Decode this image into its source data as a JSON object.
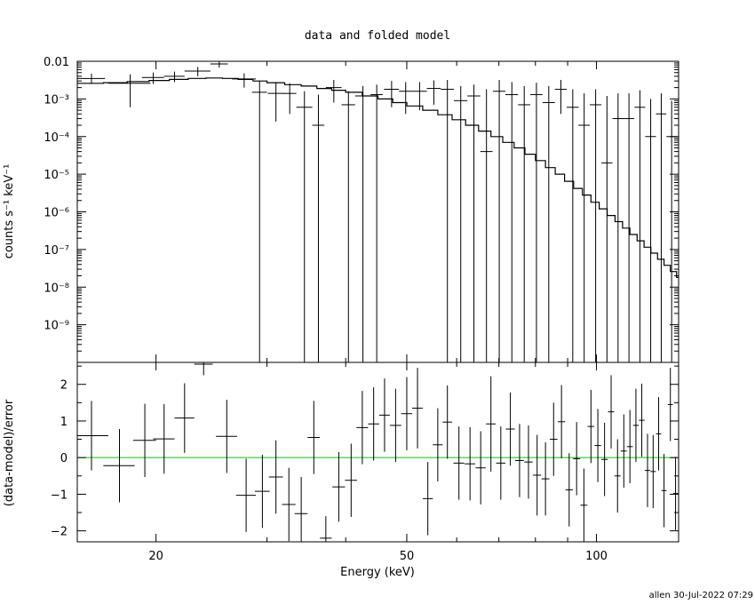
{
  "title": "data and folded model",
  "xlabel": "Energy (keV)",
  "footer": "allen 30-Jul-2022 07:29",
  "colors": {
    "axes": "#000000",
    "zero_line": "#00cc00",
    "background": "#ffffff"
  },
  "chart_data": [
    {
      "type": "line",
      "panel": "spectrum",
      "title": "data and folded model",
      "ylabel": "counts s⁻¹ keV⁻¹",
      "xscale": "log",
      "yscale": "log",
      "xlim": [
        15,
        135
      ],
      "ylim": [
        1e-10,
        0.01
      ],
      "x_ticks": [
        20,
        50,
        100
      ],
      "y_ticks": [
        0.01,
        0.001,
        0.0001,
        1e-05,
        1e-06,
        1e-07,
        1e-08,
        1e-09
      ],
      "y_tick_labels": [
        "0.01",
        "10⁻³",
        "10⁻⁴",
        "10⁻⁵",
        "10⁻⁶",
        "10⁻⁷",
        "10⁻⁸",
        "10⁻⁹"
      ],
      "data": {
        "name": "data",
        "x": [
          15.8,
          18.2,
          19.8,
          21.4,
          23.3,
          25.2,
          27.6,
          29.2,
          31.0,
          32.6,
          34.4,
          36.2,
          38.3,
          40.4,
          42.6,
          44.8,
          47.3,
          49.8,
          52.4,
          55.2,
          58.0,
          60.9,
          63.9,
          66.9,
          70.1,
          73.4,
          76.8,
          80.3,
          84.0,
          87.8,
          91.7,
          95.6,
          99.7,
          103.9,
          108.2,
          112.6,
          117.2,
          121.9,
          126.7,
          131.6
        ],
        "y": [
          0.0035,
          0.0026,
          0.0037,
          0.004,
          0.0055,
          0.0085,
          0.0034,
          0.0015,
          0.0014,
          0.0014,
          0.0006,
          0.0002,
          0.002,
          0.0007,
          0.0012,
          0.0013,
          0.0018,
          0.0016,
          0.0016,
          0.0019,
          0.0018,
          0.0009,
          0.0012,
          4e-05,
          0.0016,
          0.0013,
          0.0007,
          0.0013,
          0.0008,
          0.0018,
          0.0006,
          0.0002,
          0.0007,
          2e-05,
          0.0003,
          0.0003,
          0.0006,
          0.0001,
          0.0004,
          0.0001
        ],
        "x_err": [
          0.8,
          1.4,
          0.8,
          0.8,
          1.1,
          0.8,
          1.2,
          0.8,
          0.9,
          0.8,
          1.0,
          0.8,
          1.1,
          1.0,
          1.2,
          1.0,
          1.3,
          1.2,
          1.4,
          1.4,
          1.4,
          1.5,
          1.5,
          1.5,
          1.6,
          1.7,
          1.7,
          1.8,
          1.9,
          1.9,
          2.0,
          2.0,
          2.1,
          2.1,
          2.2,
          2.2,
          2.3,
          2.4,
          2.4,
          2.5
        ],
        "y_lo": [
          0.0025,
          0.0006,
          0.0025,
          0.0028,
          0.004,
          0.0068,
          0.002,
          1e-10,
          0.00025,
          0.0004,
          1e-10,
          1e-10,
          0.0008,
          1e-10,
          1e-10,
          1e-10,
          0.0006,
          0.0004,
          0.0005,
          0.0007,
          1e-10,
          1e-10,
          1e-10,
          1e-10,
          1e-10,
          1e-10,
          1e-10,
          1e-10,
          1e-10,
          0.0004,
          1e-10,
          1e-10,
          1e-10,
          1e-10,
          1e-10,
          1e-10,
          1e-10,
          1e-10,
          1e-10,
          1e-10
        ],
        "y_hi": [
          0.0047,
          0.0045,
          0.005,
          0.0053,
          0.0071,
          0.0102,
          0.0048,
          0.003,
          0.0028,
          0.0026,
          0.0016,
          0.0013,
          0.0032,
          0.0016,
          0.0022,
          0.0024,
          0.003,
          0.0028,
          0.0028,
          0.0031,
          0.0032,
          0.0022,
          0.0024,
          0.0018,
          0.0032,
          0.0028,
          0.0022,
          0.0027,
          0.0022,
          0.0032,
          0.0018,
          0.0014,
          0.0018,
          0.0012,
          0.0014,
          0.0014,
          0.0017,
          0.001,
          0.0014,
          0.0009
        ]
      },
      "model": {
        "name": "folded model",
        "x": [
          15.0,
          16.5,
          18.0,
          19.5,
          21.0,
          22.5,
          24.0,
          25.5,
          27.0,
          28.5,
          30.0,
          32.0,
          34.0,
          36.0,
          38.0,
          40.0,
          42.5,
          45.0,
          47.5,
          50.0,
          53.0,
          56.0,
          59.0,
          62.0,
          65.0,
          68.0,
          71.0,
          74.0,
          77.0,
          80.0,
          83.0,
          86.0,
          89.0,
          92.0,
          95.0,
          98.0,
          101.0,
          104.0,
          107.0,
          110.0,
          113.0,
          116.0,
          119.0,
          122.0,
          125.0,
          128.0,
          131.0,
          134.0
        ],
        "y": [
          0.0026,
          0.0027,
          0.0029,
          0.0031,
          0.0033,
          0.0035,
          0.0036,
          0.0035,
          0.0033,
          0.003,
          0.0027,
          0.0024,
          0.0022,
          0.0019,
          0.0017,
          0.0015,
          0.0012,
          0.001,
          0.0008,
          0.00065,
          0.0005,
          0.00038,
          0.00028,
          0.0002,
          0.00014,
          0.0001,
          7e-05,
          5e-05,
          3.4e-05,
          2.3e-05,
          1.5e-05,
          1e-05,
          6.5e-06,
          4.2e-06,
          2.8e-06,
          1.8e-06,
          1.2e-06,
          8e-07,
          5.5e-07,
          3.7e-07,
          2.5e-07,
          1.7e-07,
          1.15e-07,
          8e-08,
          5.5e-08,
          3.8e-08,
          2.6e-08,
          1.8e-08
        ]
      }
    },
    {
      "type": "scatter",
      "panel": "residuals",
      "ylabel": "(data-model)/error",
      "xscale": "log",
      "yscale": "linear",
      "xlim": [
        15,
        135
      ],
      "ylim": [
        -2.3,
        2.6
      ],
      "x_ticks": [
        20,
        50,
        100
      ],
      "x_tick_labels": [
        "20",
        "50",
        "100"
      ],
      "y_ticks": [
        2,
        1,
        0,
        -1,
        -2
      ],
      "y_tick_labels": [
        "2",
        "1",
        "0",
        "−1",
        "−2"
      ],
      "zero_line": 0,
      "residuals": {
        "x": [
          15.8,
          17.5,
          19.2,
          20.6,
          22.2,
          23.8,
          25.9,
          27.8,
          29.5,
          31.0,
          32.5,
          34.0,
          35.6,
          37.2,
          39.0,
          40.8,
          42.5,
          44.3,
          46.1,
          48.0,
          50.0,
          52.0,
          54.0,
          56.0,
          58.0,
          60.5,
          63.0,
          65.5,
          68.0,
          70.5,
          73.0,
          75.5,
          78.0,
          80.5,
          83.0,
          85.5,
          88.0,
          90.5,
          93.0,
          95.5,
          98.0,
          100.5,
          103.0,
          105.5,
          108.0,
          110.5,
          113.0,
          115.5,
          118.0,
          120.5,
          123.0,
          125.5,
          128.0,
          131.0,
          133.5
        ],
        "y": [
          0.6,
          -0.22,
          0.47,
          0.51,
          1.08,
          2.55,
          0.58,
          -1.03,
          -0.92,
          -0.53,
          -1.28,
          -1.53,
          0.55,
          -2.2,
          -0.8,
          -0.62,
          0.82,
          0.92,
          1.16,
          0.88,
          1.2,
          1.35,
          -1.12,
          0.35,
          0.97,
          -0.15,
          -0.17,
          -0.28,
          0.92,
          -0.15,
          0.78,
          -0.08,
          -0.12,
          -0.48,
          -0.58,
          0.5,
          0.98,
          -0.88,
          -0.03,
          -1.3,
          0.85,
          0.33,
          -0.05,
          1.25,
          -0.5,
          0.18,
          0.3,
          0.88,
          1.02,
          -0.35,
          -0.38,
          0.65,
          -0.9,
          1.45,
          -0.98
        ],
        "x_err": [
          1.0,
          1.0,
          0.8,
          0.8,
          0.8,
          0.8,
          1.0,
          1.0,
          0.8,
          0.8,
          0.8,
          0.8,
          0.8,
          0.8,
          0.9,
          0.9,
          0.9,
          0.9,
          0.9,
          1.0,
          1.0,
          1.0,
          1.0,
          1.0,
          1.0,
          1.2,
          1.2,
          1.2,
          1.2,
          1.2,
          1.2,
          1.2,
          1.2,
          1.2,
          1.2,
          1.2,
          1.2,
          1.2,
          1.2,
          1.2,
          1.2,
          1.2,
          1.2,
          1.2,
          1.2,
          1.2,
          1.2,
          1.2,
          1.2,
          1.2,
          1.2,
          1.2,
          1.2,
          1.2,
          1.2
        ],
        "y_err": [
          0.95,
          1.0,
          1.0,
          0.95,
          0.95,
          0.3,
          1.0,
          1.0,
          1.0,
          1.0,
          1.0,
          1.0,
          1.0,
          0.6,
          0.95,
          1.0,
          1.0,
          1.0,
          1.0,
          1.0,
          1.0,
          1.1,
          1.0,
          1.0,
          1.0,
          1.0,
          1.0,
          1.0,
          1.3,
          1.0,
          1.0,
          1.0,
          1.0,
          1.1,
          1.0,
          1.0,
          1.0,
          1.0,
          1.0,
          1.0,
          1.0,
          1.0,
          1.0,
          1.0,
          1.0,
          1.0,
          1.0,
          1.0,
          1.0,
          1.0,
          1.0,
          1.0,
          1.0,
          1.0,
          1.0
        ]
      }
    }
  ]
}
